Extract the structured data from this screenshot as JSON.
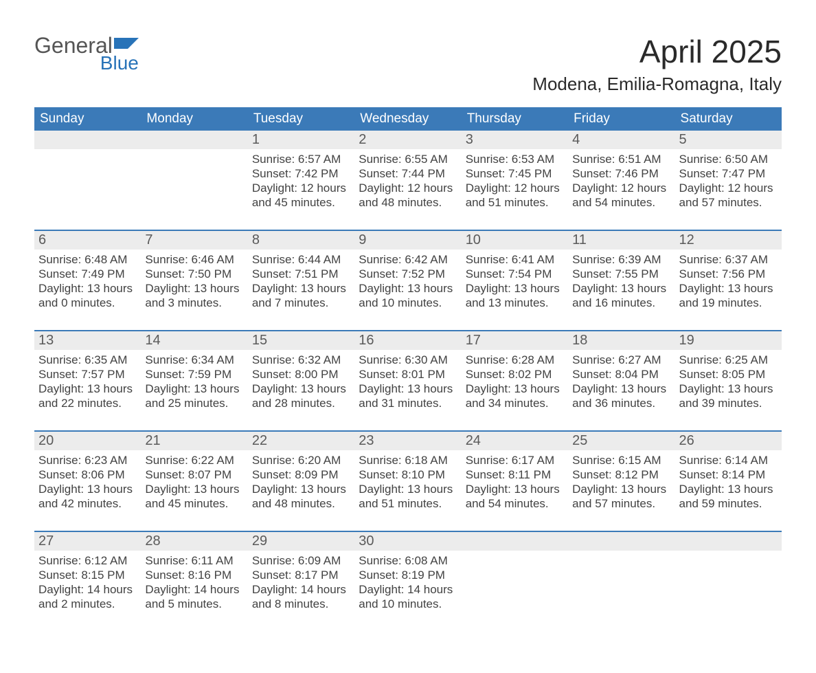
{
  "logo": {
    "word1": "General",
    "word2": "Blue"
  },
  "title": "April 2025",
  "location": "Modena, Emilia-Romagna, Italy",
  "colors": {
    "header_blue": "#3b7ab8",
    "daynum_bg": "#ececec",
    "text": "#333333",
    "logo_gray": "#555555",
    "logo_blue": "#2873b8",
    "background": "#ffffff"
  },
  "typography": {
    "title_fontsize_pt": 34,
    "location_fontsize_pt": 20,
    "dow_fontsize_pt": 14,
    "daynum_fontsize_pt": 15,
    "body_fontsize_pt": 13
  },
  "days_of_week": [
    "Sunday",
    "Monday",
    "Tuesday",
    "Wednesday",
    "Thursday",
    "Friday",
    "Saturday"
  ],
  "weeks": [
    [
      null,
      null,
      {
        "n": "1",
        "sunrise": "Sunrise: 6:57 AM",
        "sunset": "Sunset: 7:42 PM",
        "dl1": "Daylight: 12 hours",
        "dl2": "and 45 minutes."
      },
      {
        "n": "2",
        "sunrise": "Sunrise: 6:55 AM",
        "sunset": "Sunset: 7:44 PM",
        "dl1": "Daylight: 12 hours",
        "dl2": "and 48 minutes."
      },
      {
        "n": "3",
        "sunrise": "Sunrise: 6:53 AM",
        "sunset": "Sunset: 7:45 PM",
        "dl1": "Daylight: 12 hours",
        "dl2": "and 51 minutes."
      },
      {
        "n": "4",
        "sunrise": "Sunrise: 6:51 AM",
        "sunset": "Sunset: 7:46 PM",
        "dl1": "Daylight: 12 hours",
        "dl2": "and 54 minutes."
      },
      {
        "n": "5",
        "sunrise": "Sunrise: 6:50 AM",
        "sunset": "Sunset: 7:47 PM",
        "dl1": "Daylight: 12 hours",
        "dl2": "and 57 minutes."
      }
    ],
    [
      {
        "n": "6",
        "sunrise": "Sunrise: 6:48 AM",
        "sunset": "Sunset: 7:49 PM",
        "dl1": "Daylight: 13 hours",
        "dl2": "and 0 minutes."
      },
      {
        "n": "7",
        "sunrise": "Sunrise: 6:46 AM",
        "sunset": "Sunset: 7:50 PM",
        "dl1": "Daylight: 13 hours",
        "dl2": "and 3 minutes."
      },
      {
        "n": "8",
        "sunrise": "Sunrise: 6:44 AM",
        "sunset": "Sunset: 7:51 PM",
        "dl1": "Daylight: 13 hours",
        "dl2": "and 7 minutes."
      },
      {
        "n": "9",
        "sunrise": "Sunrise: 6:42 AM",
        "sunset": "Sunset: 7:52 PM",
        "dl1": "Daylight: 13 hours",
        "dl2": "and 10 minutes."
      },
      {
        "n": "10",
        "sunrise": "Sunrise: 6:41 AM",
        "sunset": "Sunset: 7:54 PM",
        "dl1": "Daylight: 13 hours",
        "dl2": "and 13 minutes."
      },
      {
        "n": "11",
        "sunrise": "Sunrise: 6:39 AM",
        "sunset": "Sunset: 7:55 PM",
        "dl1": "Daylight: 13 hours",
        "dl2": "and 16 minutes."
      },
      {
        "n": "12",
        "sunrise": "Sunrise: 6:37 AM",
        "sunset": "Sunset: 7:56 PM",
        "dl1": "Daylight: 13 hours",
        "dl2": "and 19 minutes."
      }
    ],
    [
      {
        "n": "13",
        "sunrise": "Sunrise: 6:35 AM",
        "sunset": "Sunset: 7:57 PM",
        "dl1": "Daylight: 13 hours",
        "dl2": "and 22 minutes."
      },
      {
        "n": "14",
        "sunrise": "Sunrise: 6:34 AM",
        "sunset": "Sunset: 7:59 PM",
        "dl1": "Daylight: 13 hours",
        "dl2": "and 25 minutes."
      },
      {
        "n": "15",
        "sunrise": "Sunrise: 6:32 AM",
        "sunset": "Sunset: 8:00 PM",
        "dl1": "Daylight: 13 hours",
        "dl2": "and 28 minutes."
      },
      {
        "n": "16",
        "sunrise": "Sunrise: 6:30 AM",
        "sunset": "Sunset: 8:01 PM",
        "dl1": "Daylight: 13 hours",
        "dl2": "and 31 minutes."
      },
      {
        "n": "17",
        "sunrise": "Sunrise: 6:28 AM",
        "sunset": "Sunset: 8:02 PM",
        "dl1": "Daylight: 13 hours",
        "dl2": "and 34 minutes."
      },
      {
        "n": "18",
        "sunrise": "Sunrise: 6:27 AM",
        "sunset": "Sunset: 8:04 PM",
        "dl1": "Daylight: 13 hours",
        "dl2": "and 36 minutes."
      },
      {
        "n": "19",
        "sunrise": "Sunrise: 6:25 AM",
        "sunset": "Sunset: 8:05 PM",
        "dl1": "Daylight: 13 hours",
        "dl2": "and 39 minutes."
      }
    ],
    [
      {
        "n": "20",
        "sunrise": "Sunrise: 6:23 AM",
        "sunset": "Sunset: 8:06 PM",
        "dl1": "Daylight: 13 hours",
        "dl2": "and 42 minutes."
      },
      {
        "n": "21",
        "sunrise": "Sunrise: 6:22 AM",
        "sunset": "Sunset: 8:07 PM",
        "dl1": "Daylight: 13 hours",
        "dl2": "and 45 minutes."
      },
      {
        "n": "22",
        "sunrise": "Sunrise: 6:20 AM",
        "sunset": "Sunset: 8:09 PM",
        "dl1": "Daylight: 13 hours",
        "dl2": "and 48 minutes."
      },
      {
        "n": "23",
        "sunrise": "Sunrise: 6:18 AM",
        "sunset": "Sunset: 8:10 PM",
        "dl1": "Daylight: 13 hours",
        "dl2": "and 51 minutes."
      },
      {
        "n": "24",
        "sunrise": "Sunrise: 6:17 AM",
        "sunset": "Sunset: 8:11 PM",
        "dl1": "Daylight: 13 hours",
        "dl2": "and 54 minutes."
      },
      {
        "n": "25",
        "sunrise": "Sunrise: 6:15 AM",
        "sunset": "Sunset: 8:12 PM",
        "dl1": "Daylight: 13 hours",
        "dl2": "and 57 minutes."
      },
      {
        "n": "26",
        "sunrise": "Sunrise: 6:14 AM",
        "sunset": "Sunset: 8:14 PM",
        "dl1": "Daylight: 13 hours",
        "dl2": "and 59 minutes."
      }
    ],
    [
      {
        "n": "27",
        "sunrise": "Sunrise: 6:12 AM",
        "sunset": "Sunset: 8:15 PM",
        "dl1": "Daylight: 14 hours",
        "dl2": "and 2 minutes."
      },
      {
        "n": "28",
        "sunrise": "Sunrise: 6:11 AM",
        "sunset": "Sunset: 8:16 PM",
        "dl1": "Daylight: 14 hours",
        "dl2": "and 5 minutes."
      },
      {
        "n": "29",
        "sunrise": "Sunrise: 6:09 AM",
        "sunset": "Sunset: 8:17 PM",
        "dl1": "Daylight: 14 hours",
        "dl2": "and 8 minutes."
      },
      {
        "n": "30",
        "sunrise": "Sunrise: 6:08 AM",
        "sunset": "Sunset: 8:19 PM",
        "dl1": "Daylight: 14 hours",
        "dl2": "and 10 minutes."
      },
      null,
      null,
      null
    ]
  ]
}
